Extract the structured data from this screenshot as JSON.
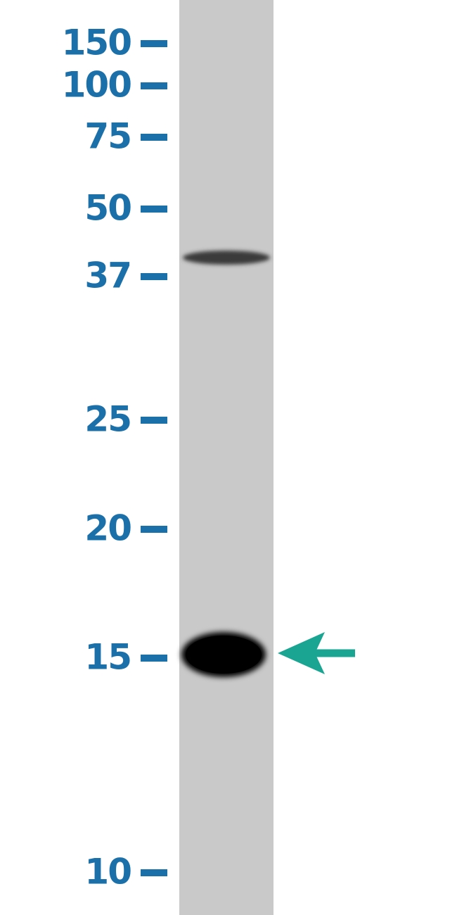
{
  "markers": [
    "150",
    "100",
    "75",
    "50",
    "37",
    "25",
    "20",
    "15",
    "10"
  ]
}
